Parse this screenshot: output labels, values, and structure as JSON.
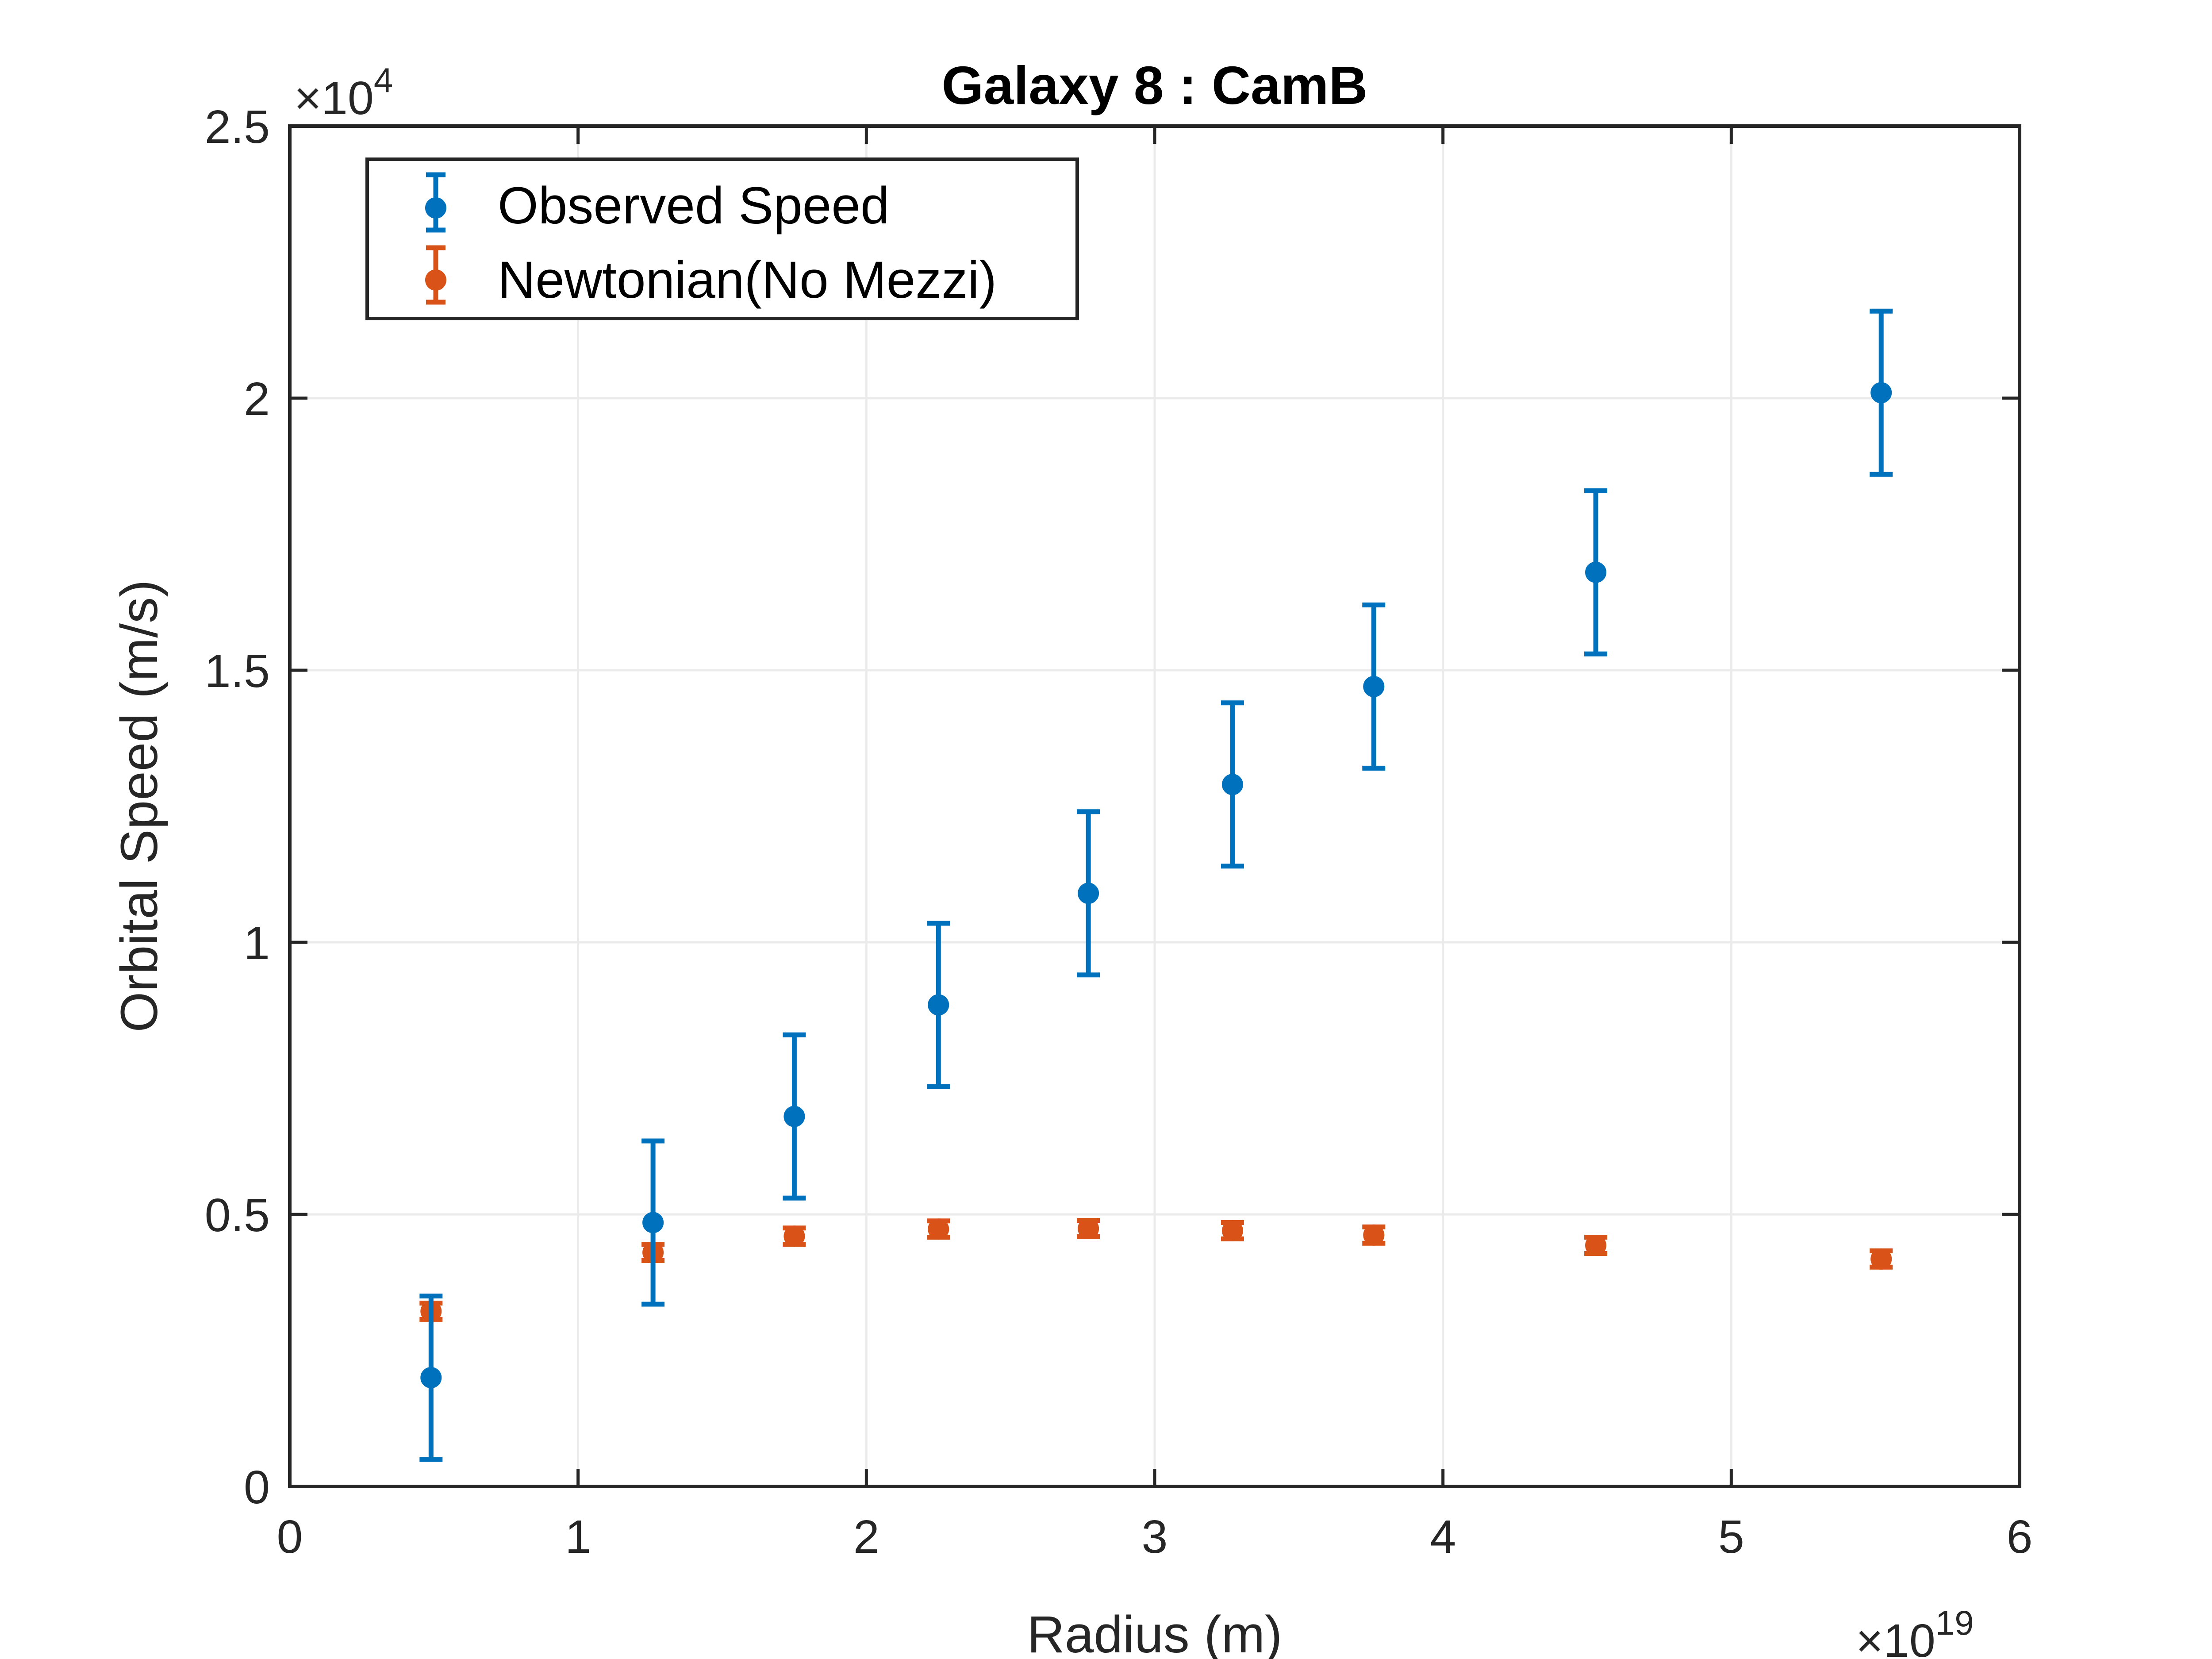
{
  "chart_data": {
    "type": "scatter",
    "title": "Galaxy 8 : CamB",
    "xlabel": "Radius (m)",
    "ylabel": "Orbital Speed (m/s)",
    "x_multiplier": {
      "base": "10",
      "exponent": "19"
    },
    "y_multiplier": {
      "base": "10",
      "exponent": "4"
    },
    "xlim": [
      0,
      6
    ],
    "ylim": [
      0,
      2.5
    ],
    "x_ticks": [
      "0",
      "1",
      "2",
      "3",
      "4",
      "5",
      "6"
    ],
    "y_ticks": [
      "0",
      "0.5",
      "1",
      "1.5",
      "2",
      "2.5"
    ],
    "grid": true,
    "legend_position": "top-left",
    "series": [
      {
        "name": "Observed Speed",
        "color": "#0072BD",
        "x": [
          0.49,
          1.26,
          1.75,
          2.25,
          2.77,
          3.27,
          3.76,
          4.53,
          5.52
        ],
        "y": [
          0.2,
          0.485,
          0.68,
          0.885,
          1.09,
          1.29,
          1.47,
          1.68,
          2.01
        ],
        "err": [
          0.15,
          0.15,
          0.15,
          0.15,
          0.15,
          0.15,
          0.15,
          0.15,
          0.15
        ]
      },
      {
        "name": "Newtonian(No Mezzi)",
        "color": "#D95319",
        "x": [
          0.49,
          1.26,
          1.75,
          2.25,
          2.77,
          3.27,
          3.76,
          4.53,
          5.52
        ],
        "y": [
          0.322,
          0.43,
          0.46,
          0.473,
          0.474,
          0.47,
          0.462,
          0.443,
          0.418
        ],
        "err": [
          0.015,
          0.015,
          0.015,
          0.015,
          0.015,
          0.015,
          0.015,
          0.015,
          0.015
        ]
      }
    ]
  }
}
